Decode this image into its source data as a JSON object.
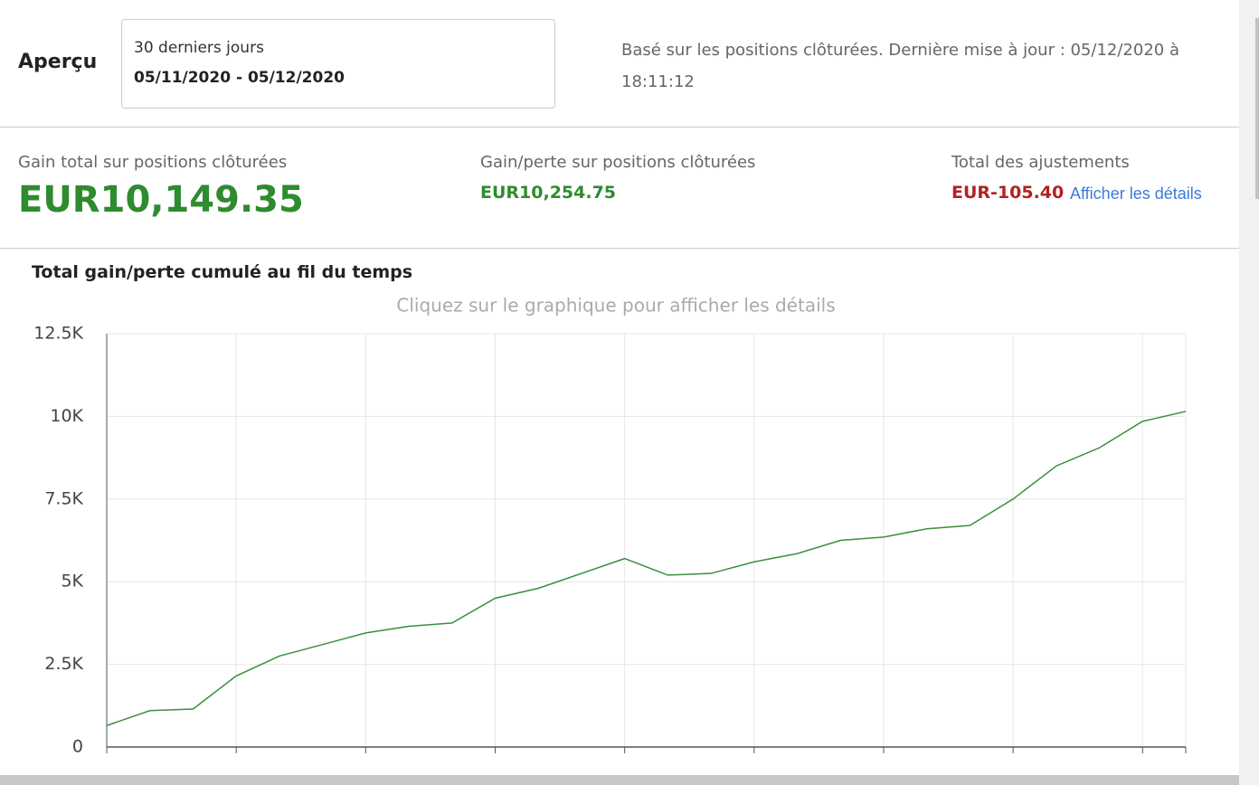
{
  "header": {
    "title": "Aperçu",
    "period_label": "30 derniers jours",
    "period_range": "05/11/2020 - 05/12/2020",
    "update_note": "Basé sur les positions clôturées. Dernière mise à jour : 05/12/2020 à 18:11:12"
  },
  "summary": [
    {
      "label": "Gain total sur positions clôturées",
      "value": "EUR10,149.35"
    },
    {
      "label": "Gain/perte sur positions clôturées",
      "value": "EUR10,254.75"
    },
    {
      "label": "Total des ajustements",
      "value": "EUR-105.40",
      "link": "Afficher les détails"
    }
  ],
  "chart_data": {
    "type": "line",
    "title": "Total gain/perte cumulé au fil du temps",
    "subtitle": "Cliquez sur le graphique pour afficher les détails",
    "categories": [
      null,
      null,
      null,
      null,
      null,
      null,
      null,
      null,
      null,
      null,
      null,
      null,
      null,
      null,
      null,
      null,
      null,
      null,
      null,
      null,
      null,
      null,
      null,
      null,
      null,
      null
    ],
    "values": [
      650,
      1100,
      1150,
      2150,
      2750,
      3100,
      3450,
      3650,
      3750,
      4500,
      4800,
      5250,
      5700,
      5200,
      5250,
      5600,
      5850,
      6250,
      6350,
      6600,
      6700,
      7500,
      8500,
      9050,
      9850,
      10149.35
    ],
    "color": "#3a8f3a",
    "ylim": [
      0,
      12500
    ],
    "yticks": [
      0,
      {
        "value": 2500,
        "label": "2.5K"
      },
      {
        "value": 5000,
        "label": "5K"
      },
      {
        "value": 7500,
        "label": "7.5K"
      },
      {
        "value": 10000,
        "label": "10K"
      },
      {
        "value": 12500,
        "label": "12.5K"
      }
    ],
    "grid": true
  }
}
